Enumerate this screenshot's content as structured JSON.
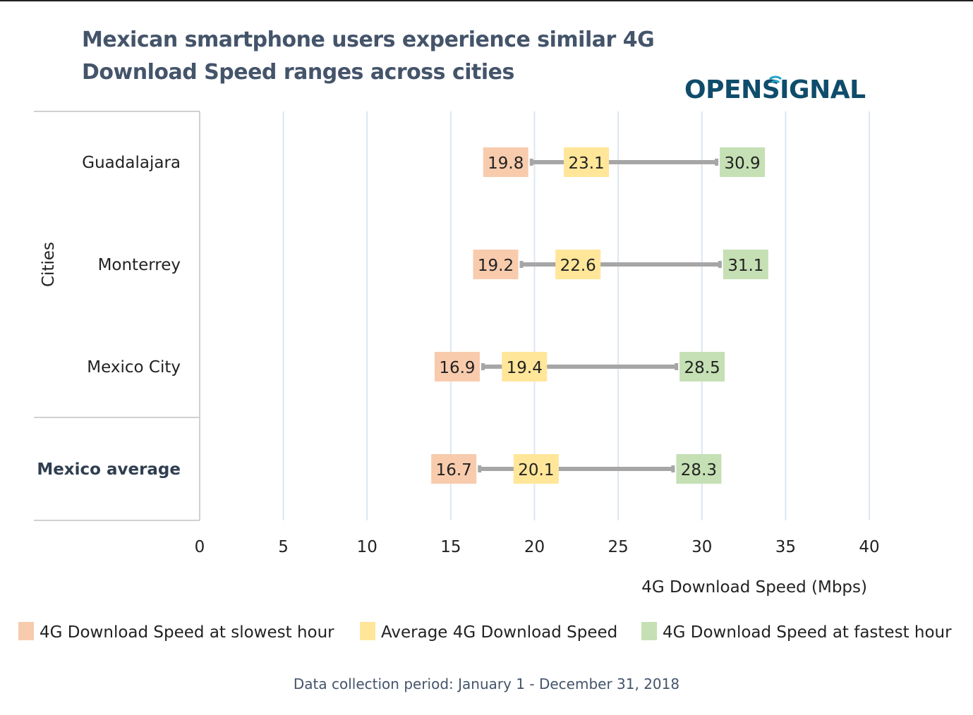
{
  "title_line1": "Mexican smartphone users experience similar 4G",
  "title_line2": "Download Speed ranges across cities",
  "logo_text": "OPENSIGNAL",
  "footer": "Data collection period: January 1 - December 31, 2018",
  "colors": {
    "slowest": "#f8cbad",
    "average": "#ffe699",
    "fastest": "#c5e0b4",
    "connector": "#a6a6a6",
    "grid": "#dce6f0",
    "logo": "#0f4c6b",
    "title": "#44546a"
  },
  "chart_data": {
    "type": "dot-range",
    "categories": [
      "Guadalajara",
      "Monterrey",
      "Mexico City",
      "Mexico average"
    ],
    "highlight_category": "Mexico average",
    "series": [
      {
        "name": "4G Download Speed at slowest hour",
        "key": "slowest",
        "values": [
          19.8,
          19.2,
          16.9,
          16.7
        ]
      },
      {
        "name": "Average 4G Download Speed",
        "key": "average",
        "values": [
          23.1,
          22.6,
          19.4,
          20.1
        ]
      },
      {
        "name": "4G Download Speed at fastest hour",
        "key": "fastest",
        "values": [
          30.9,
          31.1,
          28.5,
          28.3
        ]
      }
    ],
    "xlabel": "4G Download Speed (Mbps)",
    "ylabel": "Cities",
    "xlim": [
      0,
      40
    ],
    "xticks": [
      0,
      5,
      10,
      15,
      20,
      25,
      30,
      35,
      40
    ],
    "grid": true,
    "legend_position": "bottom"
  }
}
